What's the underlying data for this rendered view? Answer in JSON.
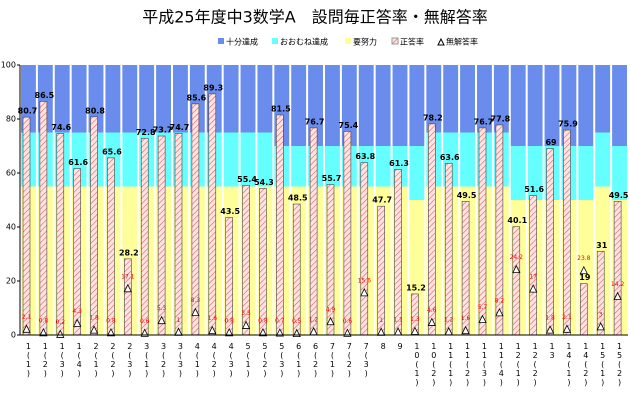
{
  "chart_data": {
    "type": "bar",
    "title": "平成25年度中3数学A　設問毎正答率・無解答率",
    "categories": [
      "1(1)",
      "1(2)",
      "1(3)",
      "1(4)",
      "2(1)",
      "2(2)",
      "2(3)",
      "3(1)",
      "3(2)",
      "3(3)",
      "4(1)",
      "4(2)",
      "4(3)",
      "5(1)",
      "5(2)",
      "5(3)",
      "6(1)",
      "6(2)",
      "7(1)",
      "7(2)",
      "7(3)",
      "8",
      "9",
      "10(1)",
      "10(2)",
      "11(1)",
      "11(2)",
      "11(3)",
      "11(4)",
      "12(1)",
      "12(2)",
      "13",
      "14(1)",
      "14(2)",
      "15(1)",
      "15(2)"
    ],
    "series": [
      {
        "name": "十分達成",
        "color": "#6a8cec",
        "values": [
          25,
          25,
          25,
          25,
          25,
          25,
          25,
          25,
          25,
          25,
          25,
          25,
          25,
          25,
          25,
          30,
          30,
          30,
          30,
          30,
          30,
          30,
          30,
          30,
          25,
          25,
          25,
          25,
          25,
          30,
          30,
          30,
          30,
          30,
          25,
          30
        ]
      },
      {
        "name": "おおむね達成",
        "color": "#66ffff",
        "values": [
          20,
          20,
          20,
          20,
          20,
          20,
          20,
          20,
          20,
          20,
          20,
          20,
          20,
          20,
          20,
          15,
          15,
          15,
          15,
          15,
          15,
          15,
          15,
          20,
          20,
          20,
          20,
          20,
          20,
          20,
          20,
          20,
          20,
          20,
          20,
          20
        ]
      },
      {
        "name": "要努力",
        "color": "#ffff99",
        "values": [
          55,
          55,
          55,
          55,
          55,
          55,
          55,
          55,
          55,
          55,
          55,
          55,
          55,
          55,
          55,
          55,
          55,
          55,
          55,
          55,
          55,
          55,
          55,
          50,
          55,
          55,
          55,
          55,
          55,
          50,
          50,
          50,
          50,
          50,
          55,
          50
        ]
      },
      {
        "name": "正答率",
        "color": "#ffdede",
        "values": [
          80.7,
          86.5,
          74.6,
          61.6,
          80.8,
          65.6,
          28.2,
          72.8,
          73.7,
          74.7,
          85.6,
          89.3,
          43.5,
          55.4,
          54.3,
          81.5,
          48.5,
          76.7,
          55.7,
          75.4,
          63.8,
          47.7,
          61.3,
          15.2,
          78.2,
          63.6,
          49.5,
          76.7,
          77.8,
          40.1,
          51.6,
          69.0,
          75.9,
          19.0,
          31.0,
          49.5
        ]
      },
      {
        "name": "無解答率",
        "color": "#ff0000",
        "values": [
          2.1,
          0.8,
          0.2,
          4.3,
          1.8,
          0.8,
          17.1,
          0.6,
          5.3,
          1.0,
          8.3,
          1.6,
          0.8,
          3.5,
          0.8,
          0.7,
          0.5,
          1.2,
          4.9,
          0.6,
          15.6,
          1.0,
          1.1,
          1.3,
          4.6,
          1.2,
          1.6,
          5.7,
          8.2,
          24.2,
          17.0,
          1.8,
          2.1,
          23.8,
          3.0,
          14.2
        ]
      }
    ],
    "ylim": [
      0,
      100
    ],
    "yticks": [
      0,
      20,
      40,
      60,
      80,
      100
    ]
  }
}
